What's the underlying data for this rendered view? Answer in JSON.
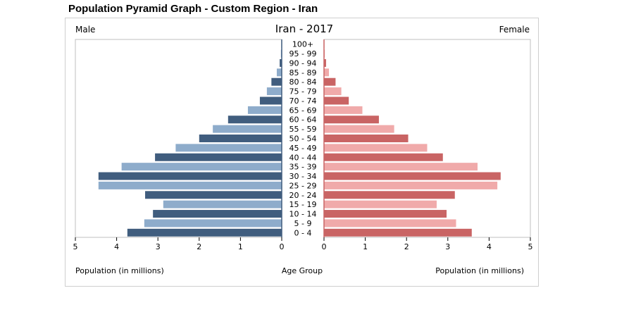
{
  "page": {
    "title": "Population Pyramid Graph - Custom Region - Iran"
  },
  "chart_data": {
    "type": "bar",
    "title": "Iran - 2017",
    "male_label": "Male",
    "female_label": "Female",
    "xlabel_left": "Population (in millions)",
    "xlabel_center": "Age Group",
    "xlabel_right": "Population (in millions)",
    "xlim": [
      0,
      5
    ],
    "ticks": [
      "5",
      "4",
      "3",
      "2",
      "1",
      "0",
      "0",
      "1",
      "2",
      "3",
      "4",
      "5"
    ],
    "categories": [
      "100+",
      "95 - 99",
      "90 - 94",
      "85 - 89",
      "80 - 84",
      "75 - 79",
      "70 - 74",
      "65 - 69",
      "60 - 64",
      "55 - 59",
      "50 - 54",
      "45 - 49",
      "40 - 44",
      "35 - 39",
      "30 - 34",
      "25 - 29",
      "20 - 24",
      "15 - 19",
      "10 - 14",
      "5 - 9",
      "0 - 4"
    ],
    "series": [
      {
        "name": "Male",
        "values": [
          0.01,
          0.02,
          0.05,
          0.12,
          0.25,
          0.36,
          0.53,
          0.82,
          1.3,
          1.67,
          2.0,
          2.57,
          3.07,
          3.88,
          4.44,
          4.44,
          3.31,
          2.87,
          3.12,
          3.33,
          3.74
        ],
        "colors": [
          "#405d7e",
          "#8eaccb"
        ]
      },
      {
        "name": "Female",
        "values": [
          0.01,
          0.02,
          0.05,
          0.12,
          0.28,
          0.42,
          0.6,
          0.93,
          1.33,
          1.7,
          2.04,
          2.5,
          2.88,
          3.72,
          4.28,
          4.2,
          3.17,
          2.73,
          2.97,
          3.2,
          3.58
        ],
        "colors": [
          "#c96464",
          "#f0aaaa"
        ]
      }
    ],
    "colors": {
      "zero_line_male": "#405d7e",
      "zero_line_female": "#c96464"
    }
  }
}
